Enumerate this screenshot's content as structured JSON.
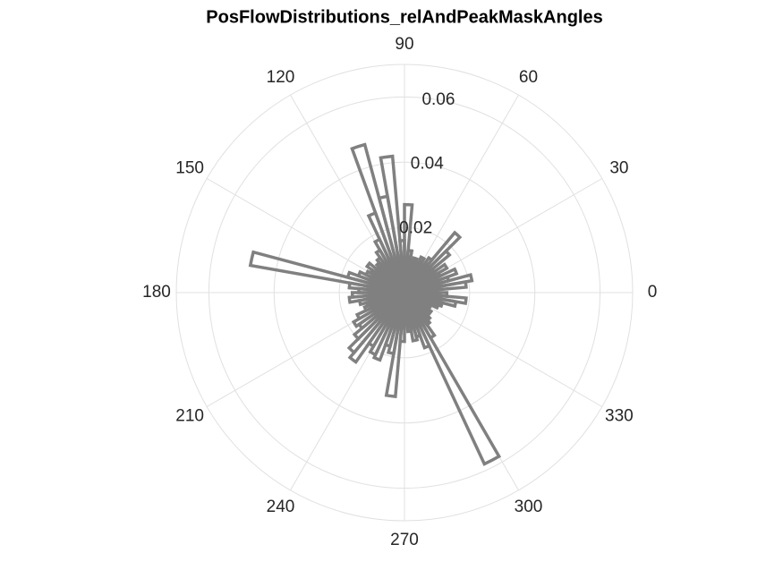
{
  "chart_data": {
    "type": "polarhistogram",
    "title": "PosFlowDistributions_relAndPeakMaskAngles",
    "bins": [
      0,
      5,
      10,
      15,
      20,
      25,
      30,
      35,
      40,
      45,
      50,
      55,
      60,
      65,
      70,
      75,
      80,
      85,
      90,
      95,
      100,
      105,
      110,
      115,
      120,
      125,
      130,
      135,
      140,
      145,
      150,
      155,
      160,
      165,
      170,
      175,
      180,
      185,
      190,
      195,
      200,
      205,
      210,
      215,
      220,
      225,
      230,
      235,
      240,
      245,
      250,
      255,
      260,
      265,
      270,
      275,
      280,
      285,
      290,
      295,
      300,
      305,
      310,
      315,
      320,
      325,
      330,
      335,
      340,
      345,
      350,
      355,
      360
    ],
    "values": [
      0.01,
      0.019,
      0.021,
      0.014,
      0.017,
      0.012,
      0.015,
      0.011,
      0.018,
      0.024,
      0.013,
      0.01,
      0.012,
      0.009,
      0.011,
      0.01,
      0.013,
      0.027,
      0.016,
      0.042,
      0.03,
      0.047,
      0.026,
      0.018,
      0.015,
      0.013,
      0.012,
      0.011,
      0.014,
      0.012,
      0.013,
      0.015,
      0.018,
      0.048,
      0.017,
      0.014,
      0.016,
      0.017,
      0.014,
      0.012,
      0.013,
      0.016,
      0.018,
      0.017,
      0.02,
      0.024,
      0.026,
      0.019,
      0.021,
      0.022,
      0.017,
      0.019,
      0.032,
      0.015,
      0.01,
      0.012,
      0.015,
      0.014,
      0.018,
      0.058,
      0.016,
      0.012,
      0.011,
      0.009,
      0.01,
      0.008,
      0.009,
      0.011,
      0.012,
      0.016,
      0.019,
      0.013
    ],
    "color": "#808080",
    "rlim": [
      0,
      0.07
    ],
    "rticks": [
      0.02,
      0.04,
      0.06
    ],
    "thetaticks": [
      0,
      30,
      60,
      90,
      120,
      150,
      180,
      210,
      240,
      270,
      300,
      330
    ],
    "grid": true
  }
}
